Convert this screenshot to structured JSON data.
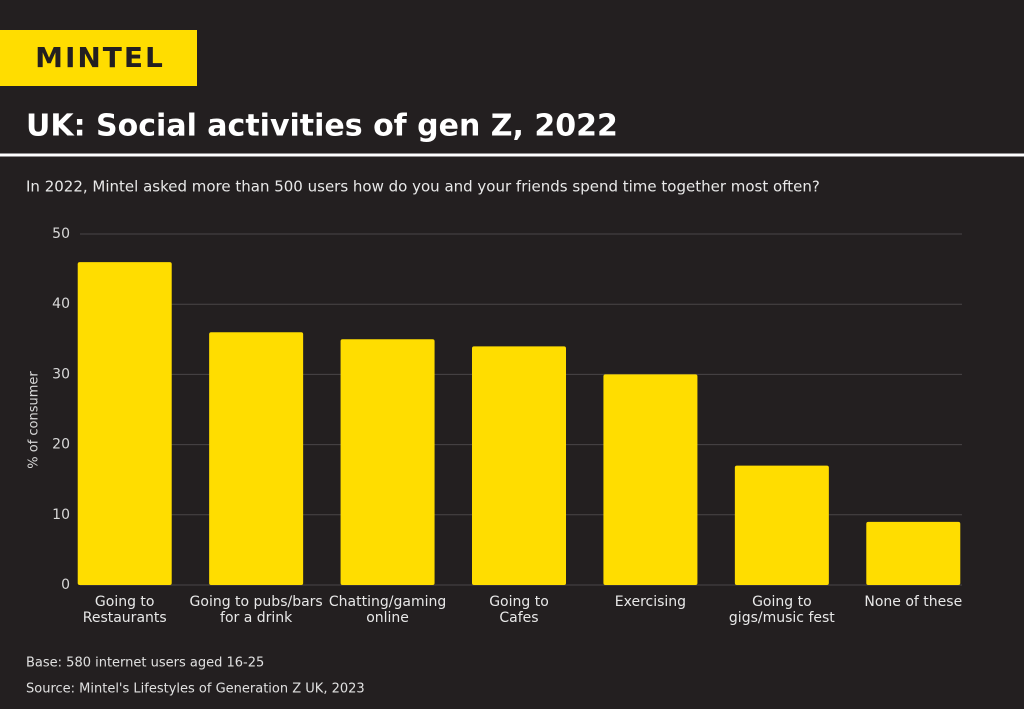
{
  "brand": "MINTEL",
  "chart_data": {
    "type": "bar",
    "title": "UK: Social activities of gen Z, 2022",
    "subtitle": "In 2022, Mintel asked more than 500 users how do you and your friends spend time together most often?",
    "y_label": "% of consumer",
    "categories": [
      [
        "Going to",
        "Restaurants"
      ],
      [
        "Going to pubs/bars",
        "for a drink"
      ],
      [
        "Chatting/gaming",
        "online"
      ],
      [
        "Going to",
        "Cafes"
      ],
      [
        "Exercising"
      ],
      [
        "Going to",
        "gigs/music fest"
      ],
      [
        "None of these"
      ]
    ],
    "values": [
      46,
      36,
      35,
      34,
      30,
      17,
      9
    ],
    "color": "#ffdd00",
    "ylim": [
      0,
      50
    ],
    "yticks": [
      0,
      10,
      20,
      30,
      40,
      50
    ],
    "grid": true,
    "notes": [
      "Base: 580 internet users aged 16-25",
      "Source: Mintel's Lifestyles of Generation Z UK, 2023"
    ]
  }
}
